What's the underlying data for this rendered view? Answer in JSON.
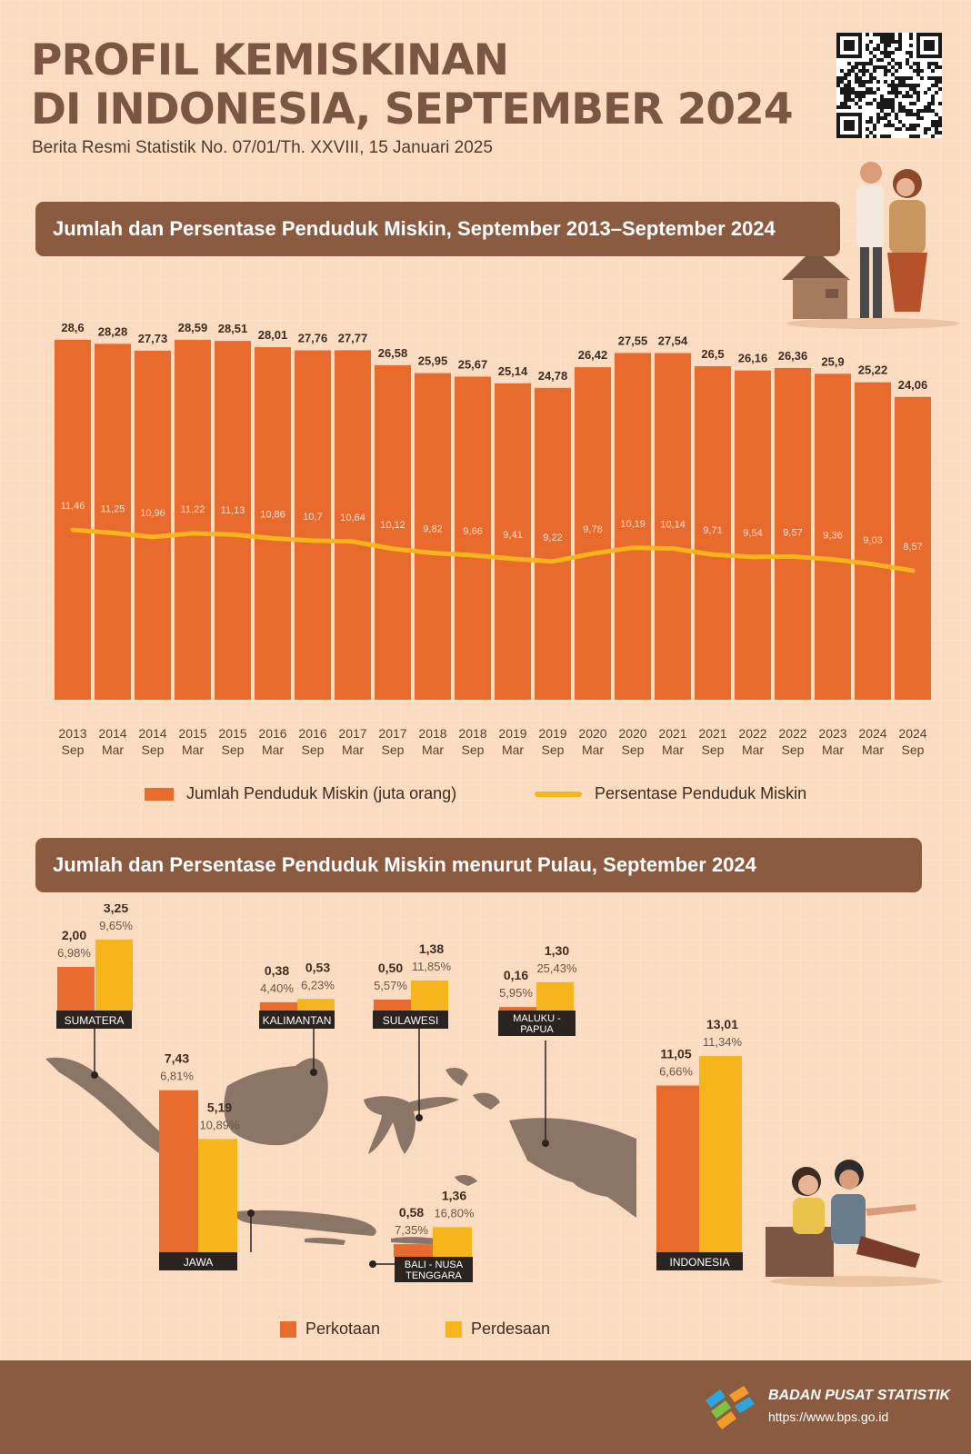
{
  "header": {
    "title_line1": "PROFIL KEMISKINAN",
    "title_line2": "DI INDONESIA, SEPTEMBER 2024",
    "subtitle": "Berita Resmi Statistik No. 07/01/Th. XXVIII, 15 Januari 2025"
  },
  "section1": {
    "title": "Jumlah dan Persentase Penduduk Miskin, September 2013–September 2024"
  },
  "section2": {
    "title": "Jumlah dan Persentase Penduduk Miskin menurut Pulau, September 2024"
  },
  "colors": {
    "bar": "#e86b2d",
    "line": "#f7b51d",
    "banner": "#8a5b40",
    "map": "#8a7566",
    "rural": "#f7b51d",
    "urban": "#e86b2d"
  },
  "chart_data": [
    {
      "type": "bar",
      "title": "Jumlah dan Persentase Penduduk Miskin, September 2013–September 2024",
      "categories": [
        [
          "2013",
          "Sep"
        ],
        [
          "2014",
          "Mar"
        ],
        [
          "2014",
          "Sep"
        ],
        [
          "2015",
          "Mar"
        ],
        [
          "2015",
          "Sep"
        ],
        [
          "2016",
          "Mar"
        ],
        [
          "2016",
          "Sep"
        ],
        [
          "2017",
          "Mar"
        ],
        [
          "2017",
          "Sep"
        ],
        [
          "2018",
          "Mar"
        ],
        [
          "2018",
          "Sep"
        ],
        [
          "2019",
          "Mar"
        ],
        [
          "2019",
          "Sep"
        ],
        [
          "2020",
          "Mar"
        ],
        [
          "2020",
          "Sep"
        ],
        [
          "2021",
          "Mar"
        ],
        [
          "2021",
          "Sep"
        ],
        [
          "2022",
          "Mar"
        ],
        [
          "2022",
          "Sep"
        ],
        [
          "2023",
          "Mar"
        ],
        [
          "2024",
          "Mar"
        ],
        [
          "2024",
          "Sep"
        ]
      ],
      "series": [
        {
          "name": "Jumlah Penduduk Miskin (juta orang)",
          "type": "bar",
          "values": [
            28.6,
            28.28,
            27.73,
            28.59,
            28.51,
            28.01,
            27.76,
            27.77,
            26.58,
            25.95,
            25.67,
            25.14,
            24.78,
            26.42,
            27.55,
            27.54,
            26.5,
            26.16,
            26.36,
            25.9,
            25.22,
            24.06
          ],
          "labels": [
            "28,6",
            "28,28",
            "27,73",
            "28,59",
            "28,51",
            "28,01",
            "27,76",
            "27,77",
            "26,58",
            "25,95",
            "25,67",
            "25,14",
            "24,78",
            "26,42",
            "27,55",
            "27,54",
            "26,5",
            "26,16",
            "26,36",
            "25,9",
            "25,22",
            "24,06"
          ]
        },
        {
          "name": "Persentase Penduduk Miskin",
          "type": "line",
          "values": [
            11.46,
            11.25,
            10.96,
            11.22,
            11.13,
            10.86,
            10.7,
            10.64,
            10.12,
            9.82,
            9.66,
            9.41,
            9.22,
            9.78,
            10.19,
            10.14,
            9.71,
            9.54,
            9.57,
            9.36,
            9.03,
            8.57
          ],
          "labels": [
            "11,46",
            "11,25",
            "10,96",
            "11,22",
            "11,13",
            "10,86",
            "10,7",
            "10,64",
            "10,12",
            "9,82",
            "9,66",
            "9,41",
            "9,22",
            "9,78",
            "10,19",
            "10,14",
            "9,71",
            "9,54",
            "9,57",
            "9,36",
            "9,03",
            "8,57"
          ]
        }
      ],
      "legend_position": "bottom"
    },
    {
      "type": "bar",
      "title": "Jumlah dan Persentase Penduduk Miskin menurut Pulau, September 2024",
      "series_names": [
        "Perkotaan",
        "Perdesaan"
      ],
      "regions": [
        {
          "name": "SUMATERA",
          "urban": {
            "value": 2.0,
            "value_label": "2,00",
            "pct_label": "6,98%"
          },
          "rural": {
            "value": 3.25,
            "value_label": "3,25",
            "pct_label": "9,65%"
          }
        },
        {
          "name": "KALIMANTAN",
          "urban": {
            "value": 0.38,
            "value_label": "0,38",
            "pct_label": "4,40%"
          },
          "rural": {
            "value": 0.53,
            "value_label": "0,53",
            "pct_label": "6,23%"
          }
        },
        {
          "name": "SULAWESI",
          "urban": {
            "value": 0.5,
            "value_label": "0,50",
            "pct_label": "5,57%"
          },
          "rural": {
            "value": 1.38,
            "value_label": "1,38",
            "pct_label": "11,85%"
          }
        },
        {
          "name": "MALUKU - PAPUA",
          "urban": {
            "value": 0.16,
            "value_label": "0,16",
            "pct_label": "5,95%"
          },
          "rural": {
            "value": 1.3,
            "value_label": "1,30",
            "pct_label": "25,43%"
          }
        },
        {
          "name": "JAWA",
          "urban": {
            "value": 7.43,
            "value_label": "7,43",
            "pct_label": "6,81%"
          },
          "rural": {
            "value": 5.19,
            "value_label": "5,19",
            "pct_label": "10,89%"
          }
        },
        {
          "name": "BALI - NUSA TENGGARA",
          "urban": {
            "value": 0.58,
            "value_label": "0,58",
            "pct_label": "7,35%"
          },
          "rural": {
            "value": 1.36,
            "value_label": "1,36",
            "pct_label": "16,80%"
          }
        },
        {
          "name": "INDONESIA",
          "urban": {
            "value": 11.05,
            "value_label": "11,05",
            "pct_label": "6,66%"
          },
          "rural": {
            "value": 13.01,
            "value_label": "13,01",
            "pct_label": "11,34%"
          }
        }
      ]
    }
  ],
  "legend1": {
    "bar": "Jumlah Penduduk Miskin (juta orang)",
    "line": "Persentase Penduduk Miskin"
  },
  "legend2": {
    "urban": "Perkotaan",
    "rural": "Perdesaan"
  },
  "footer": {
    "org": "BADAN PUSAT STATISTIK",
    "url": "https://www.bps.go.id"
  },
  "icons": {
    "qr": "qr-code-icon",
    "logo": "bps-logo-icon"
  }
}
